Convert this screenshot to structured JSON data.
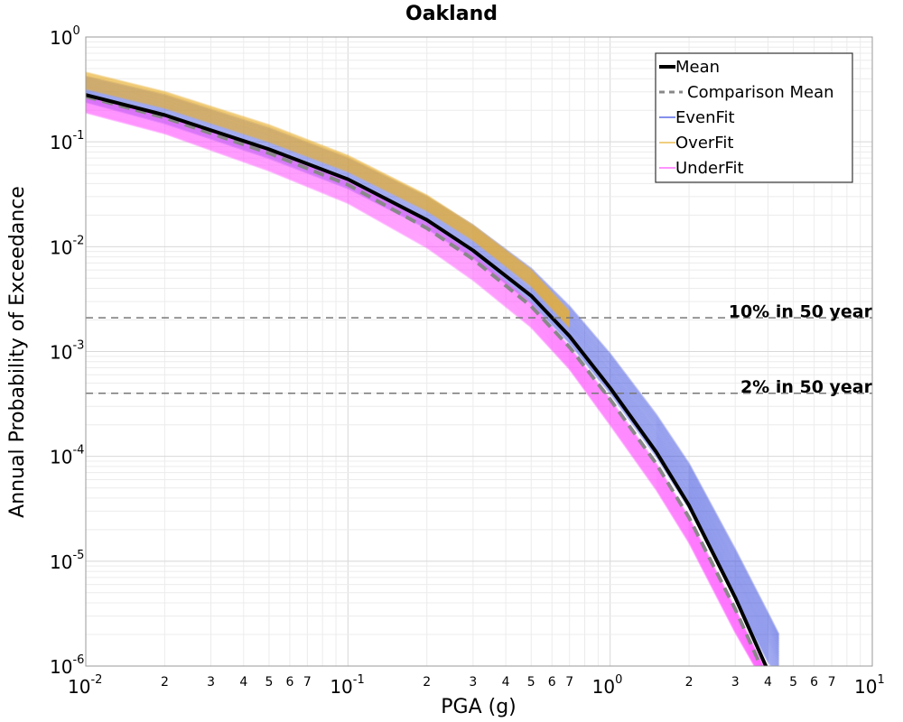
{
  "chart_data": {
    "type": "line",
    "title": "Oakland",
    "xlabel": "PGA (g)",
    "ylabel": "Annual Probability of Exceedance",
    "x_scale": "log",
    "y_scale": "log",
    "xlim": [
      0.01,
      10
    ],
    "ylim": [
      1e-06,
      1
    ],
    "grid": true,
    "legend_position": "top-right",
    "x_major_ticks": [
      {
        "value": 0.01,
        "base": "10",
        "exp": "-2"
      },
      {
        "value": 0.1,
        "base": "10",
        "exp": "-1"
      },
      {
        "value": 1,
        "base": "10",
        "exp": "0"
      },
      {
        "value": 10,
        "base": "10",
        "exp": "1"
      }
    ],
    "y_major_ticks": [
      {
        "value": 1,
        "base": "10",
        "exp": "0"
      },
      {
        "value": 0.1,
        "base": "10",
        "exp": "-1"
      },
      {
        "value": 0.01,
        "base": "10",
        "exp": "-2"
      },
      {
        "value": 0.001,
        "base": "10",
        "exp": "-3"
      },
      {
        "value": 0.0001,
        "base": "10",
        "exp": "-4"
      },
      {
        "value": 1e-05,
        "base": "10",
        "exp": "-5"
      },
      {
        "value": 1e-06,
        "base": "10",
        "exp": "-6"
      }
    ],
    "x_minor_labels": [
      "2",
      "3",
      "4",
      "5",
      "6",
      "7"
    ],
    "series": [
      {
        "name": "Mean",
        "style": "solid",
        "color": "#000000",
        "x": [
          0.01,
          0.02,
          0.05,
          0.1,
          0.2,
          0.3,
          0.5,
          0.7,
          1.0,
          1.5,
          2.0,
          3.0,
          4.0
        ],
        "y": [
          0.28,
          0.18,
          0.085,
          0.044,
          0.018,
          0.0092,
          0.0034,
          0.0014,
          0.00045,
          0.00011,
          3.4e-05,
          4.5e-06,
          9e-07
        ]
      },
      {
        "name": "Comparison Mean",
        "style": "dashed",
        "color": "#888888",
        "x": [
          0.01,
          0.02,
          0.05,
          0.1,
          0.2,
          0.3,
          0.5,
          0.7,
          1.0,
          1.5,
          2.0,
          3.0,
          4.0
        ],
        "y": [
          0.27,
          0.17,
          0.078,
          0.039,
          0.015,
          0.0076,
          0.0027,
          0.0011,
          0.00035,
          8.5e-05,
          2.6e-05,
          3.5e-06,
          7e-07
        ]
      },
      {
        "name": "EvenFit",
        "style": "band",
        "color": "#3a4de0",
        "x": [
          0.01,
          0.02,
          0.05,
          0.1,
          0.2,
          0.3,
          0.5,
          0.7,
          1.0,
          1.5,
          2.0,
          3.0,
          4.0,
          4.4
        ],
        "y_low": [
          0.24,
          0.15,
          0.07,
          0.036,
          0.015,
          0.0078,
          0.0029,
          0.0012,
          0.0004,
          0.0001,
          3.2e-05,
          4.5e-06,
          1.1e-06,
          8e-07
        ],
        "y_high": [
          0.42,
          0.28,
          0.135,
          0.07,
          0.03,
          0.016,
          0.0062,
          0.0027,
          0.00095,
          0.00025,
          8.5e-05,
          1.3e-05,
          3.2e-06,
          2e-06
        ]
      },
      {
        "name": "OverFit",
        "style": "band",
        "color": "#e8b030",
        "x": [
          0.01,
          0.02,
          0.05,
          0.1,
          0.2,
          0.3,
          0.5,
          0.7
        ],
        "y_low": [
          0.32,
          0.21,
          0.1,
          0.052,
          0.022,
          0.0115,
          0.0042,
          0.0017
        ],
        "y_high": [
          0.46,
          0.3,
          0.145,
          0.074,
          0.031,
          0.016,
          0.006,
          0.0024
        ]
      },
      {
        "name": "UnderFit",
        "style": "band",
        "color": "#ff55ff",
        "x": [
          0.01,
          0.02,
          0.05,
          0.1,
          0.2,
          0.3,
          0.5,
          0.7,
          1.0,
          1.5,
          2.0,
          3.0,
          4.0
        ],
        "y_low": [
          0.19,
          0.12,
          0.053,
          0.026,
          0.0098,
          0.0048,
          0.0017,
          0.00068,
          0.0002,
          4.8e-05,
          1.5e-05,
          2.1e-06,
          6e-07
        ],
        "y_high": [
          0.28,
          0.18,
          0.085,
          0.043,
          0.017,
          0.0085,
          0.0029,
          0.0011,
          0.00035,
          8.5e-05,
          2.6e-05,
          3.5e-06,
          8e-07
        ]
      }
    ],
    "reference_lines": [
      {
        "label": "10% in 50 year",
        "y": 0.0021
      },
      {
        "label": "2% in 50 year",
        "y": 0.0004
      }
    ]
  }
}
